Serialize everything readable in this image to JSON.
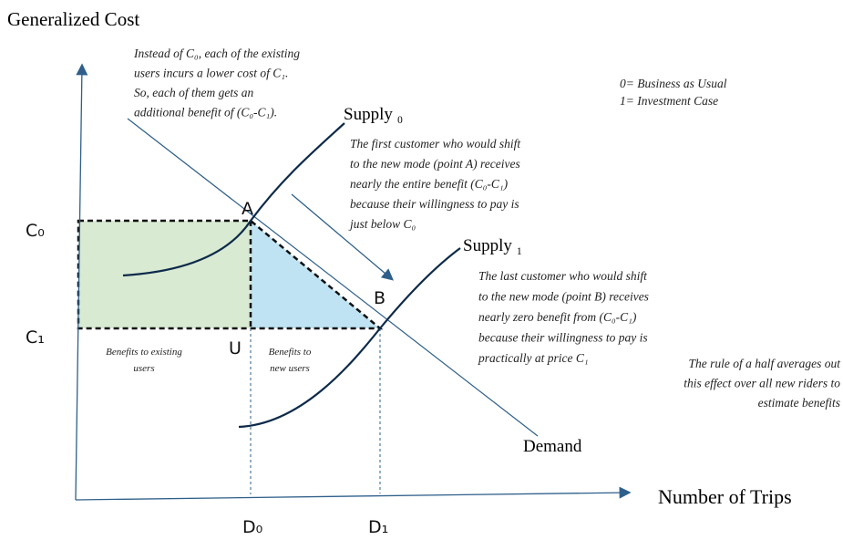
{
  "axes": {
    "y_label": "Generalized Cost",
    "x_label": "Number of Trips"
  },
  "labels": {
    "c0": "C₀",
    "c1": "C₁",
    "d0": "D₀",
    "d1": "D₁",
    "a": "A",
    "b": "B",
    "u": "U",
    "supply0": "Supply ₀",
    "supply1": "Supply ₁",
    "demand": "Demand"
  },
  "legend": [
    "0= Business as Usual",
    "1= Investment Case"
  ],
  "notes": {
    "existing": [
      "Instead of C₀, each of the existing",
      "users incurs a lower cost of C₁.",
      "So, each of them gets an",
      "additional benefit of (C₀-C₁)."
    ],
    "first": [
      "The first customer who would shift",
      "to the new mode (point A) receives",
      "nearly the entire benefit (C₀-C₁)",
      "because their willingness to pay is",
      "just below C₀"
    ],
    "last": [
      "The last customer who would shift",
      "to the new mode (point B) receives",
      "nearly zero benefit from (C₀-C₁)",
      "because their willingness to pay is",
      "practically at price C₁"
    ],
    "rule": [
      "The rule of a half averages out",
      "this effect over all new riders to",
      "estimate benefits"
    ]
  },
  "areas": {
    "existing": [
      "Benefits to existing",
      "users"
    ],
    "new": [
      "Benefits to",
      "new users"
    ]
  }
}
